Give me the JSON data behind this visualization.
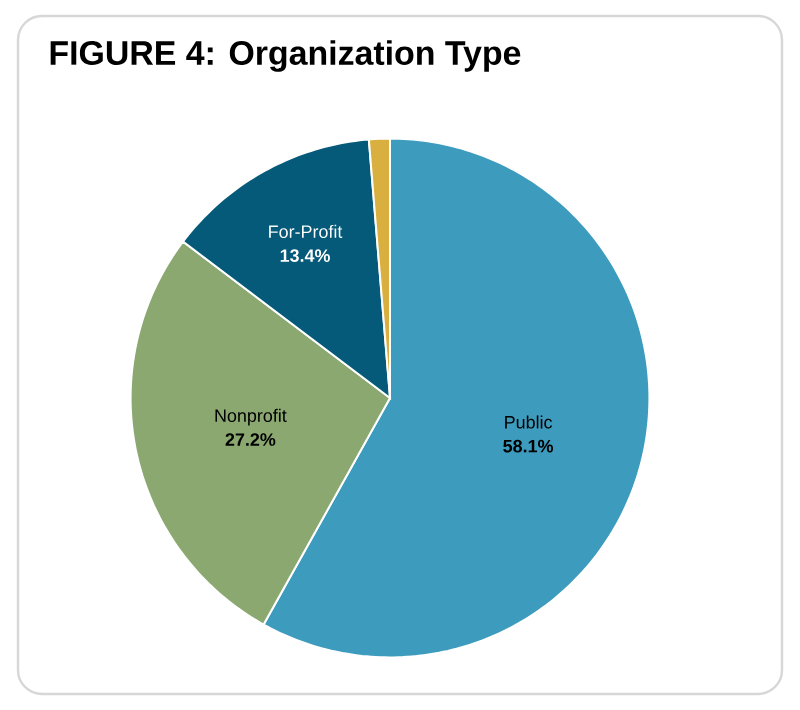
{
  "chart_data": {
    "type": "pie",
    "title": "FIGURE 4: Organization Type",
    "categories": [
      "Public",
      "Nonprofit",
      "For-Profit",
      null
    ],
    "values": [
      58.1,
      27.2,
      13.4,
      1.3
    ],
    "colors": [
      "#3d9bbd",
      "#8aa870",
      "#045a78",
      "#d9b040"
    ],
    "value_labels": [
      "58.1%",
      "27.2%",
      "13.4%",
      null
    ]
  }
}
